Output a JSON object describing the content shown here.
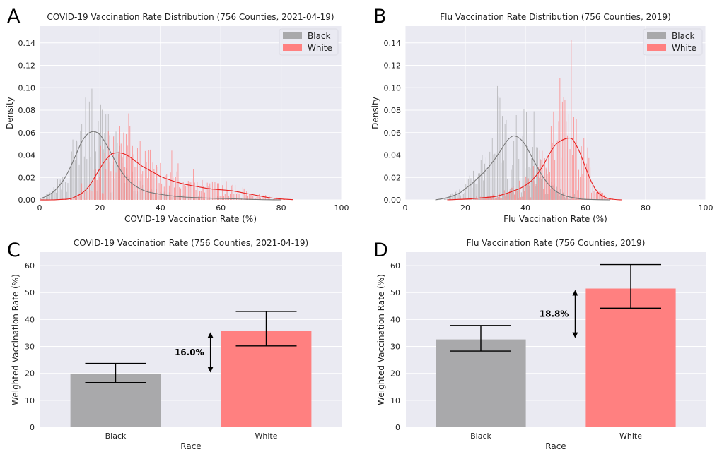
{
  "colors": {
    "background": "#eaeaf2",
    "grid": "#ffffff",
    "black_group": "#a9a9ab",
    "black_line": "#777777",
    "white_group": "#ff8080",
    "white_line": "#e8201e",
    "errorbar": "#000000"
  },
  "panels": {
    "A": {
      "letter": "A"
    },
    "B": {
      "letter": "B"
    },
    "C": {
      "letter": "C"
    },
    "D": {
      "letter": "D"
    }
  },
  "chart_data": [
    {
      "id": "A",
      "type": "area",
      "title": "COVID-19 Vaccination Rate Distribution (756 Counties, 2021-04-19)",
      "xlabel": "COVID-19 Vaccination Rate (%)",
      "ylabel": "Density",
      "xlim": [
        0,
        100
      ],
      "ylim": [
        0,
        0.155
      ],
      "xticks": [
        0,
        20,
        40,
        60,
        80,
        100
      ],
      "yticks": [
        0.0,
        0.02,
        0.04,
        0.06,
        0.08,
        0.1,
        0.12,
        0.14
      ],
      "ytick_labels": [
        "0.00",
        "0.02",
        "0.04",
        "0.06",
        "0.08",
        "0.10",
        "0.12",
        "0.14"
      ],
      "legend": {
        "position": "top-right",
        "entries": [
          "Black",
          "White"
        ]
      },
      "grid": true,
      "series": [
        {
          "name": "Black",
          "kde_x": [
            0,
            2,
            4,
            6,
            8,
            10,
            12,
            14,
            16,
            18,
            20,
            22,
            24,
            26,
            28,
            30,
            32,
            34,
            36,
            38,
            40,
            44,
            48,
            52,
            56,
            60,
            64,
            68,
            72,
            76,
            80
          ],
          "kde_y": [
            0.001,
            0.003,
            0.006,
            0.011,
            0.018,
            0.028,
            0.04,
            0.052,
            0.059,
            0.061,
            0.058,
            0.05,
            0.04,
            0.03,
            0.022,
            0.016,
            0.012,
            0.009,
            0.007,
            0.006,
            0.005,
            0.0035,
            0.0025,
            0.002,
            0.0015,
            0.0012,
            0.001,
            0.0006,
            0.0003,
            0.0001,
            0.0
          ]
        },
        {
          "name": "White",
          "kde_x": [
            0,
            4,
            8,
            10,
            12,
            14,
            16,
            18,
            20,
            22,
            24,
            26,
            28,
            30,
            32,
            34,
            36,
            38,
            40,
            44,
            48,
            52,
            56,
            60,
            64,
            68,
            72,
            76,
            80,
            84
          ],
          "kde_y": [
            0.0,
            0.0,
            0.0005,
            0.001,
            0.003,
            0.006,
            0.011,
            0.019,
            0.028,
            0.036,
            0.041,
            0.042,
            0.041,
            0.038,
            0.034,
            0.03,
            0.027,
            0.024,
            0.021,
            0.017,
            0.014,
            0.012,
            0.01,
            0.009,
            0.008,
            0.006,
            0.004,
            0.002,
            0.0008,
            0.0002
          ]
        }
      ]
    },
    {
      "id": "B",
      "type": "area",
      "title": "Flu Vaccination Rate Distribution (756 Counties, 2019)",
      "xlabel": "Flu Vaccination Rate (%)",
      "ylabel": "Density",
      "xlim": [
        0,
        100
      ],
      "ylim": [
        0,
        0.155
      ],
      "xticks": [
        0,
        20,
        40,
        60,
        80,
        100
      ],
      "yticks": [
        0.0,
        0.02,
        0.04,
        0.06,
        0.08,
        0.1,
        0.12,
        0.14
      ],
      "ytick_labels": [
        "0.00",
        "0.02",
        "0.04",
        "0.06",
        "0.08",
        "0.10",
        "0.12",
        "0.14"
      ],
      "legend": {
        "position": "top-right",
        "entries": [
          "Black",
          "White"
        ]
      },
      "grid": true,
      "series": [
        {
          "name": "Black",
          "kde_x": [
            10,
            14,
            18,
            20,
            22,
            24,
            26,
            28,
            30,
            32,
            34,
            36,
            38,
            40,
            42,
            44,
            46,
            48,
            50,
            52,
            54,
            56,
            58,
            60,
            64,
            68
          ],
          "kde_y": [
            0.0,
            0.002,
            0.006,
            0.01,
            0.014,
            0.019,
            0.024,
            0.03,
            0.037,
            0.045,
            0.053,
            0.057,
            0.055,
            0.049,
            0.039,
            0.029,
            0.02,
            0.013,
            0.008,
            0.005,
            0.003,
            0.002,
            0.001,
            0.0005,
            0.0002,
            0.0
          ]
        },
        {
          "name": "White",
          "kde_x": [
            14,
            18,
            22,
            26,
            30,
            34,
            36,
            38,
            40,
            42,
            44,
            46,
            48,
            50,
            52,
            54,
            55,
            56,
            58,
            60,
            62,
            64,
            66,
            68,
            70,
            72
          ],
          "kde_y": [
            0.0,
            0.0005,
            0.001,
            0.002,
            0.003,
            0.006,
            0.008,
            0.01,
            0.013,
            0.017,
            0.023,
            0.031,
            0.041,
            0.049,
            0.053,
            0.055,
            0.055,
            0.053,
            0.043,
            0.029,
            0.016,
            0.007,
            0.003,
            0.001,
            0.0003,
            0.0
          ]
        }
      ]
    },
    {
      "id": "C",
      "type": "bar",
      "title": "COVID-19 Vaccination Rate (756 Counties, 2021-04-19)",
      "xlabel": "Race",
      "ylabel": "Weighted Vaccination Rate (%)",
      "ylim": [
        0,
        65
      ],
      "yticks": [
        0,
        10,
        20,
        30,
        40,
        50,
        60
      ],
      "categories": [
        "Black",
        "White"
      ],
      "values": [
        19.8,
        35.8
      ],
      "error_low": [
        16.6,
        30.2
      ],
      "error_high": [
        23.7,
        43.0
      ],
      "annotation": {
        "text": "16.0%",
        "from": 19.8,
        "to": 35.8
      }
    },
    {
      "id": "D",
      "type": "bar",
      "title": "Flu Vaccination Rate (756 Counties, 2019)",
      "xlabel": "Race",
      "ylabel": "Weighted Vaccination Rate (%)",
      "ylim": [
        0,
        65
      ],
      "yticks": [
        0,
        10,
        20,
        30,
        40,
        50,
        60
      ],
      "categories": [
        "Black",
        "White"
      ],
      "values": [
        32.6,
        51.5
      ],
      "error_low": [
        28.3,
        44.2
      ],
      "error_high": [
        37.8,
        60.4
      ],
      "annotation": {
        "text": "18.8%",
        "from": 32.6,
        "to": 51.5
      }
    }
  ]
}
